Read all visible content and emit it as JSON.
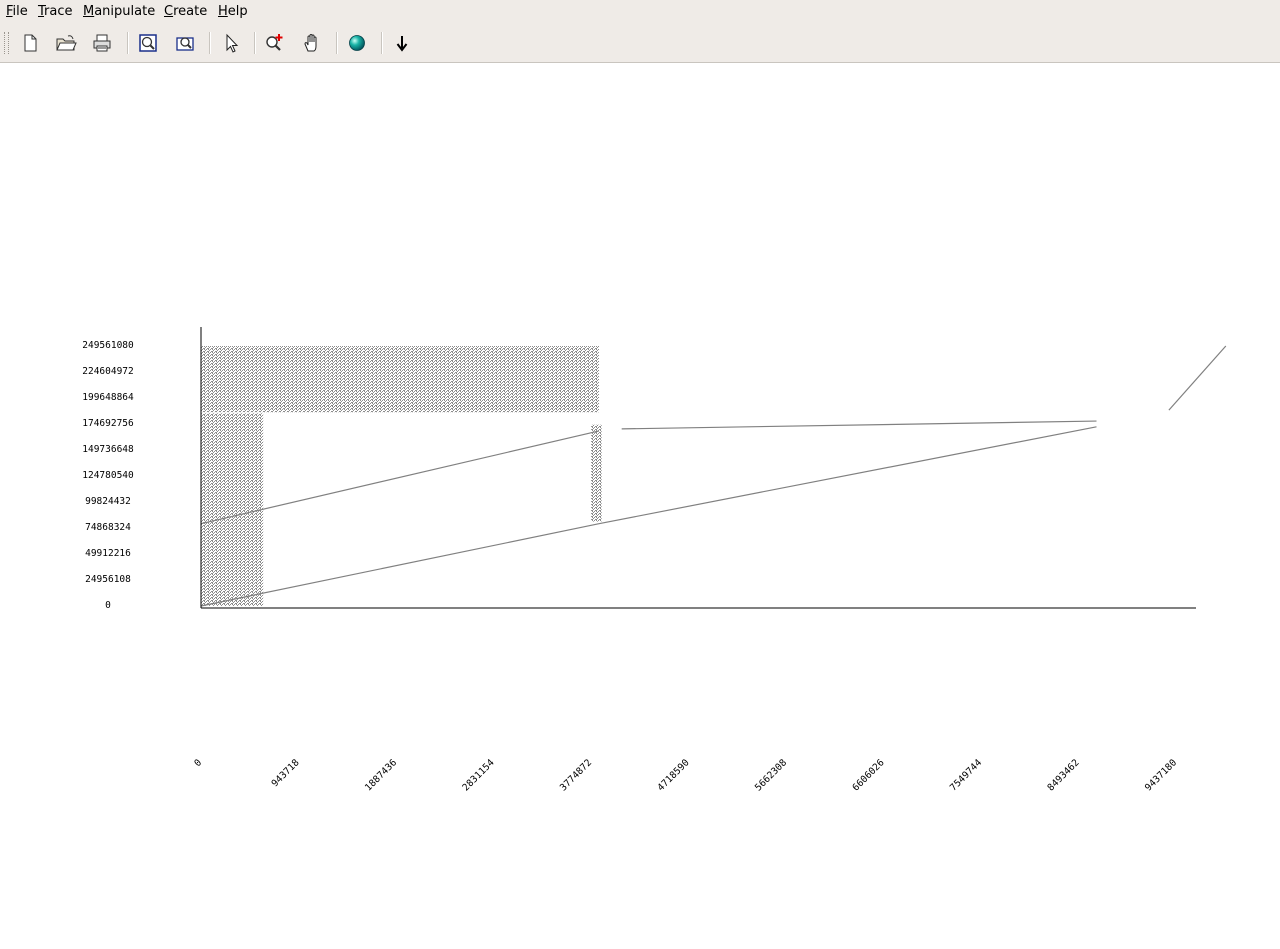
{
  "menubar": {
    "items": [
      {
        "label": "File"
      },
      {
        "label": "Trace"
      },
      {
        "label": "Manipulate"
      },
      {
        "label": "Create"
      },
      {
        "label": "Help"
      }
    ]
  },
  "toolbar": {
    "buttons": [
      {
        "icon": "new-document-icon"
      },
      {
        "icon": "open-folder-icon"
      },
      {
        "icon": "printer-icon"
      },
      {
        "icon": "zoom-fit-icon"
      },
      {
        "icon": "zoom-region-icon"
      },
      {
        "icon": "pointer-arrow-icon"
      },
      {
        "icon": "zoom-in-icon"
      },
      {
        "icon": "pan-hand-icon"
      },
      {
        "icon": "globe-icon"
      },
      {
        "icon": "down-arrow-icon"
      }
    ]
  },
  "chart_data": {
    "type": "scatter",
    "title": "",
    "xlabel": "",
    "ylabel": "",
    "x_ticks": [
      "0",
      "943718",
      "1887436",
      "2831154",
      "3774872",
      "4718590",
      "5662308",
      "6606026",
      "7549744",
      "8493462",
      "9437180"
    ],
    "y_ticks": [
      "0",
      "24956108",
      "49912216",
      "74868324",
      "99824432",
      "124780540",
      "149736648",
      "174692756",
      "199648864",
      "224604972",
      "249561080"
    ],
    "xlim": [
      0,
      9437180
    ],
    "ylim": [
      0,
      249561080
    ],
    "grid": false,
    "legend": "none",
    "color": "#808080",
    "trace_lines": [
      {
        "x": [
          0,
          3774872
        ],
        "y": [
          0,
          79000000
        ]
      },
      {
        "x": [
          0,
          3774872
        ],
        "y": [
          79000000,
          168000000
        ]
      },
      {
        "x": [
          3774872,
          8493462
        ],
        "y": [
          79000000,
          172000000
        ]
      },
      {
        "x": [
          3990000,
          8493462
        ],
        "y": [
          170000000,
          177500000
        ]
      },
      {
        "x": [
          9180000,
          9720000
        ],
        "y": [
          188000000,
          249561080
        ]
      }
    ],
    "dense_regions": [
      {
        "x": [
          0,
          3774872
        ],
        "y": [
          190000000,
          249561080
        ]
      },
      {
        "x": [
          0,
          590000
        ],
        "y": [
          0,
          185000000
        ]
      },
      {
        "x": [
          3700000,
          3800000
        ],
        "y": [
          81000000,
          174000000
        ]
      },
      {
        "x": [
          0,
          3774872
        ],
        "y": [
          186000000,
          193000000
        ]
      }
    ]
  }
}
